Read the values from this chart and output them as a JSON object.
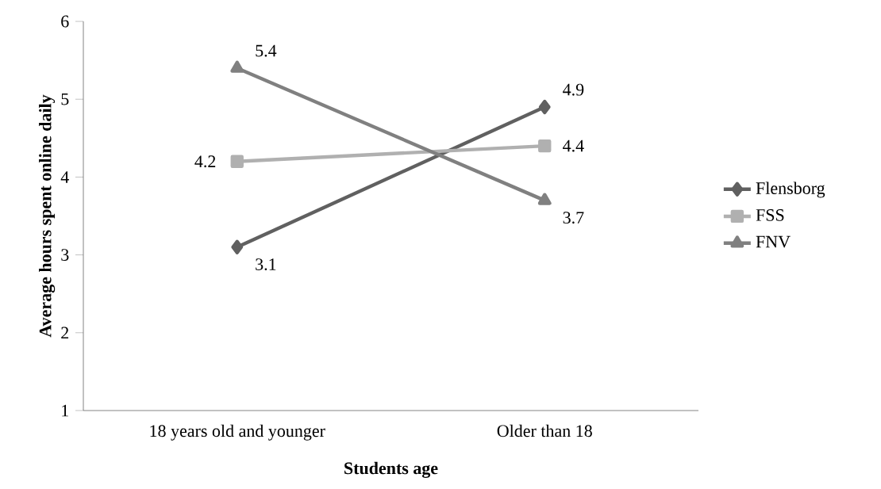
{
  "chart_data": {
    "type": "line",
    "xlabel": "Students age",
    "ylabel": "Average hours spent online daily",
    "categories": [
      "18 years old and younger",
      "Older than 18"
    ],
    "series": [
      {
        "name": "Flensborg",
        "color": "#606060",
        "marker": "diamond",
        "values": [
          3.1,
          4.9
        ]
      },
      {
        "name": "FSS",
        "color": "#b0b0b0",
        "marker": "square",
        "values": [
          4.2,
          4.4
        ]
      },
      {
        "name": "FNV",
        "color": "#808080",
        "marker": "triangle",
        "values": [
          5.4,
          3.7
        ]
      }
    ],
    "ylim": [
      1,
      6
    ],
    "yticks": [
      1,
      2,
      3,
      4,
      5,
      6
    ],
    "data_labels": true,
    "legend": "right",
    "grid": false
  }
}
